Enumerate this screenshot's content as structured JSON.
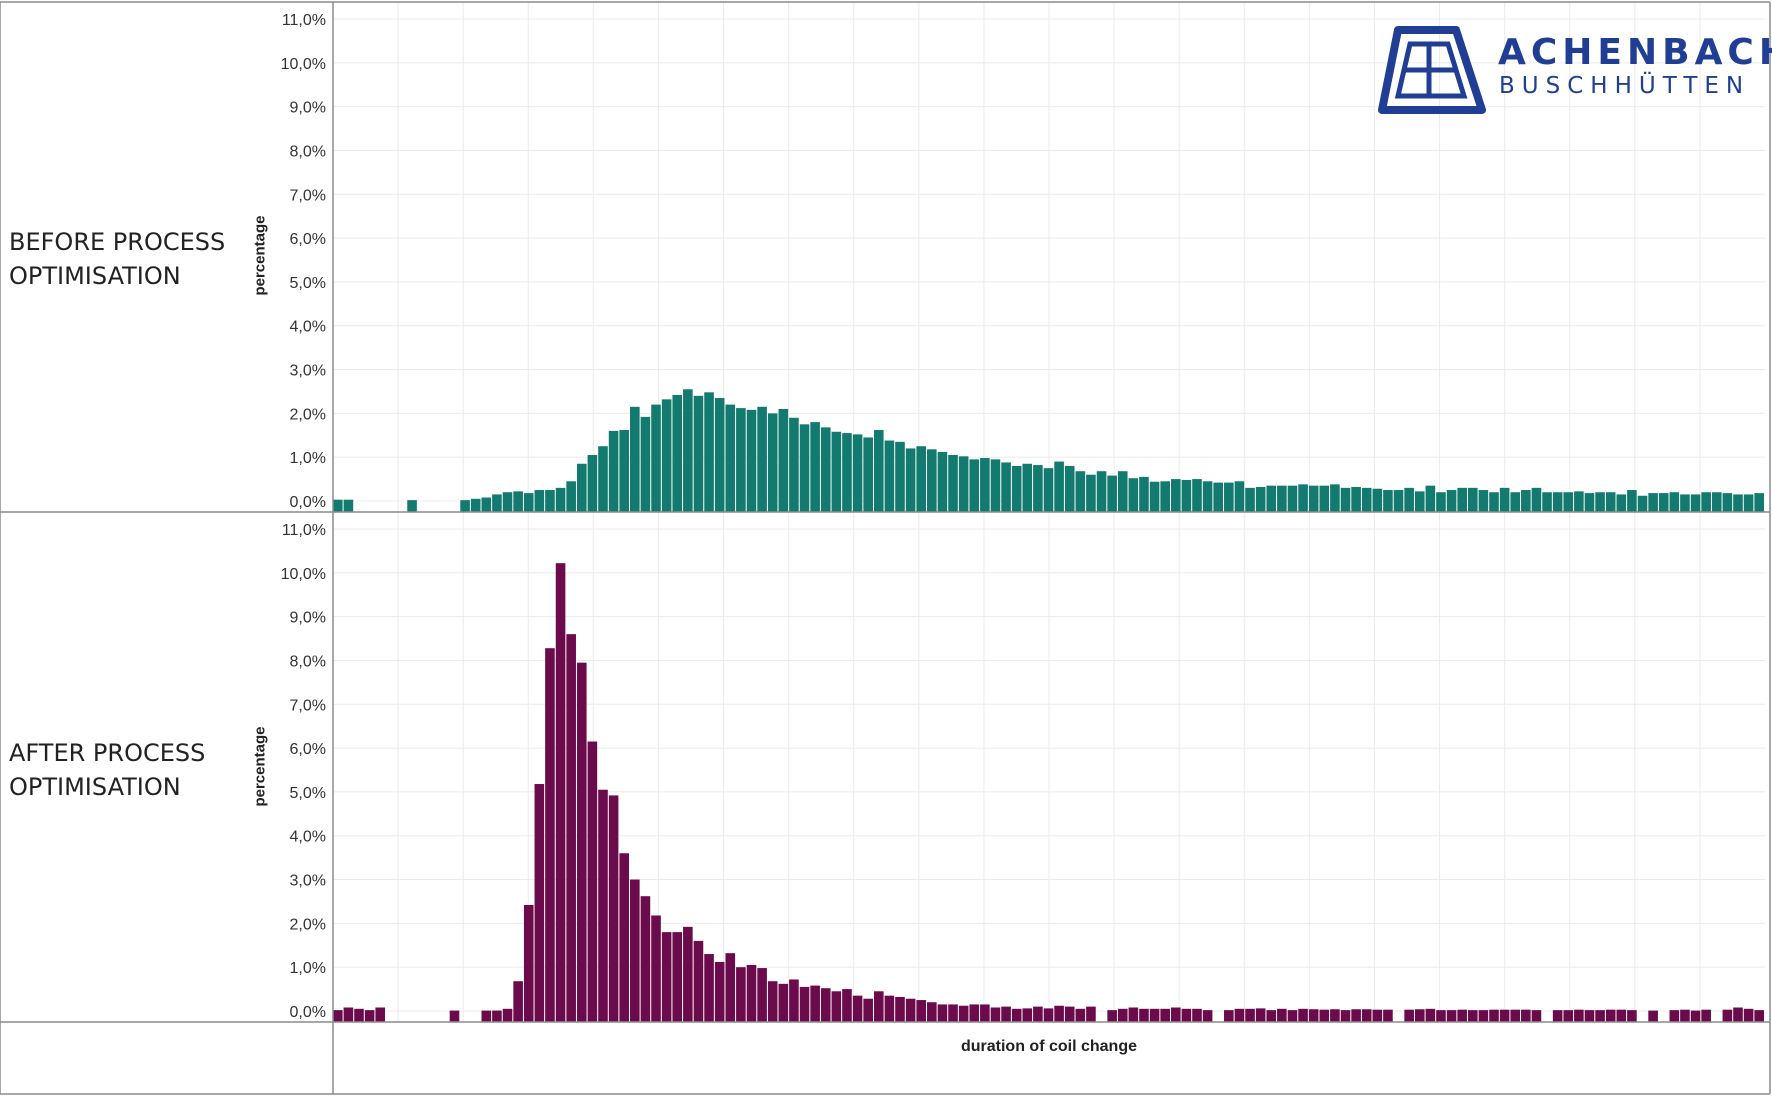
{
  "logo": {
    "line1": "ACHENBACH",
    "line2": "BUSCHHÜTTEN",
    "color": "#1f3e94"
  },
  "panels": {
    "before": {
      "label": "BEFORE PROCESS\nOPTIMISATION",
      "ylabel": "percentage"
    },
    "after": {
      "label": "AFTER PROCESS\nOPTIMISATION",
      "ylabel": "percentage"
    }
  },
  "xlabel": "duration of coil change",
  "chart_data": [
    {
      "type": "bar",
      "xlabel": "duration of coil change",
      "ylabel": "percentage",
      "ylim": [
        0,
        11
      ],
      "yticks": [
        "0,0%",
        "1,0%",
        "2,0%",
        "3,0%",
        "4,0%",
        "5,0%",
        "6,0%",
        "7,0%",
        "8,0%",
        "9,0%",
        "10,0%",
        "11,0%"
      ],
      "grid": true,
      "color": "#137a6f",
      "series": [
        {
          "values": [
            0.03,
            0.03,
            0,
            0,
            0,
            0,
            0,
            0.02,
            0,
            0,
            0,
            0,
            0.02,
            0.05,
            0.08,
            0.15,
            0.2,
            0.22,
            0.18,
            0.25,
            0.25,
            0.3,
            0.45,
            0.85,
            1.05,
            1.25,
            1.6,
            1.62,
            2.15,
            1.92,
            2.2,
            2.32,
            2.42,
            2.55,
            2.4,
            2.48,
            2.35,
            2.2,
            2.12,
            2.08,
            2.15,
            2.0,
            2.1,
            1.9,
            1.75,
            1.8,
            1.68,
            1.58,
            1.55,
            1.52,
            1.45,
            1.62,
            1.38,
            1.35,
            1.2,
            1.25,
            1.18,
            1.12,
            1.05,
            1.02,
            0.95,
            0.98,
            0.95,
            0.88,
            0.8,
            0.85,
            0.82,
            0.75,
            0.9,
            0.8,
            0.68,
            0.6,
            0.68,
            0.58,
            0.68,
            0.52,
            0.55,
            0.44,
            0.45,
            0.5,
            0.48,
            0.5,
            0.45,
            0.42,
            0.42,
            0.45,
            0.3,
            0.32,
            0.35,
            0.35,
            0.35,
            0.38,
            0.35,
            0.35,
            0.38,
            0.3,
            0.32,
            0.3,
            0.28,
            0.25,
            0.25,
            0.3,
            0.22,
            0.35,
            0.2,
            0.25,
            0.3,
            0.3,
            0.25,
            0.2,
            0.3,
            0.2,
            0.25,
            0.3,
            0.2,
            0.2,
            0.2,
            0.22,
            0.18,
            0.2,
            0.2,
            0.15,
            0.25,
            0.12,
            0.18,
            0.18,
            0.2,
            0.15,
            0.15,
            0.2,
            0.2,
            0.18,
            0.15,
            0.15,
            0.18
          ]
        }
      ]
    },
    {
      "type": "bar",
      "xlabel": "duration of coil change",
      "ylabel": "percentage",
      "ylim": [
        0,
        11
      ],
      "yticks": [
        "0,0%",
        "1,0%",
        "2,0%",
        "3,0%",
        "4,0%",
        "5,0%",
        "6,0%",
        "7,0%",
        "8,0%",
        "9,0%",
        "10,0%",
        "11,0%"
      ],
      "grid": true,
      "color": "#6b0b4c",
      "series": [
        {
          "values": [
            0.02,
            0.08,
            0.05,
            0.02,
            0.08,
            0,
            0,
            0,
            0,
            0,
            0,
            0.01,
            0,
            0,
            0.01,
            0.01,
            0.05,
            0.68,
            2.42,
            5.18,
            8.28,
            10.22,
            8.6,
            7.95,
            6.15,
            5.05,
            4.92,
            3.6,
            3.0,
            2.62,
            2.18,
            1.8,
            1.8,
            1.92,
            1.6,
            1.3,
            1.12,
            1.32,
            1.0,
            1.05,
            0.98,
            0.68,
            0.62,
            0.72,
            0.55,
            0.58,
            0.52,
            0.45,
            0.5,
            0.35,
            0.28,
            0.45,
            0.35,
            0.32,
            0.28,
            0.25,
            0.2,
            0.15,
            0.15,
            0.12,
            0.15,
            0.15,
            0.08,
            0.1,
            0.05,
            0.06,
            0.1,
            0.06,
            0.12,
            0.1,
            0.05,
            0.1,
            0,
            0.02,
            0.05,
            0.08,
            0.05,
            0.05,
            0.05,
            0.08,
            0.05,
            0.05,
            0.02,
            0,
            0.02,
            0.05,
            0.05,
            0.06,
            0.02,
            0.05,
            0.02,
            0.05,
            0.04,
            0.03,
            0.04,
            0.02,
            0.04,
            0.04,
            0.03,
            0.03,
            0,
            0.03,
            0.04,
            0.05,
            0.02,
            0.02,
            0.03,
            0.02,
            0.02,
            0.03,
            0.03,
            0.03,
            0.03,
            0.02,
            0,
            0.02,
            0.02,
            0.03,
            0.02,
            0.02,
            0.03,
            0.03,
            0.02,
            0,
            0.01,
            0,
            0.02,
            0.03,
            0.01,
            0.03,
            0,
            0.03,
            0.08,
            0.05,
            0.02
          ]
        }
      ]
    }
  ]
}
